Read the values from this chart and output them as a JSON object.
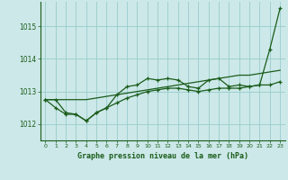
{
  "title": "Graphe pression niveau de la mer (hPa)",
  "background_color": "#cce8e8",
  "plot_bg": "#cce8e8",
  "grid_color": "#99cccc",
  "line_color": "#1a5c1a",
  "xlim": [
    -0.5,
    23.5
  ],
  "ylim": [
    1011.5,
    1015.75
  ],
  "yticks": [
    1012,
    1013,
    1014,
    1015
  ],
  "xticks": [
    0,
    1,
    2,
    3,
    4,
    5,
    6,
    7,
    8,
    9,
    10,
    11,
    12,
    13,
    14,
    15,
    16,
    17,
    18,
    19,
    20,
    21,
    22,
    23
  ],
  "series1_x": [
    0,
    1,
    2,
    3,
    4,
    5,
    6,
    7,
    8,
    9,
    10,
    11,
    12,
    13,
    14,
    15,
    16,
    17,
    18,
    19,
    20,
    21,
    22,
    23
  ],
  "series1_y": [
    1012.75,
    1012.75,
    1012.35,
    1012.3,
    1012.1,
    1012.35,
    1012.5,
    1012.65,
    1012.8,
    1012.9,
    1013.0,
    1013.05,
    1013.1,
    1013.1,
    1013.05,
    1013.0,
    1013.05,
    1013.1,
    1013.1,
    1013.1,
    1013.15,
    1013.2,
    1013.2,
    1013.3
  ],
  "series2_x": [
    0,
    1,
    2,
    3,
    4,
    5,
    6,
    7,
    8,
    9,
    10,
    11,
    12,
    13,
    14,
    15,
    16,
    17,
    18,
    19,
    20,
    21,
    22,
    23
  ],
  "series2_y": [
    1012.75,
    1012.5,
    1012.3,
    1012.3,
    1012.1,
    1012.35,
    1012.5,
    1012.9,
    1013.15,
    1013.2,
    1013.4,
    1013.35,
    1013.4,
    1013.35,
    1013.15,
    1013.1,
    1013.35,
    1013.4,
    1013.15,
    1013.2,
    1013.15,
    1013.2,
    1014.3,
    1015.55
  ],
  "series3_x": [
    0,
    1,
    2,
    3,
    4,
    5,
    6,
    7,
    8,
    9,
    10,
    11,
    12,
    13,
    14,
    15,
    16,
    17,
    18,
    19,
    20,
    21,
    22,
    23
  ],
  "series3_y": [
    1012.75,
    1012.75,
    1012.75,
    1012.75,
    1012.75,
    1012.8,
    1012.85,
    1012.9,
    1012.95,
    1013.0,
    1013.05,
    1013.1,
    1013.15,
    1013.2,
    1013.25,
    1013.3,
    1013.35,
    1013.4,
    1013.45,
    1013.5,
    1013.5,
    1013.55,
    1013.6,
    1013.65
  ],
  "figsize": [
    3.2,
    2.0
  ],
  "dpi": 100
}
